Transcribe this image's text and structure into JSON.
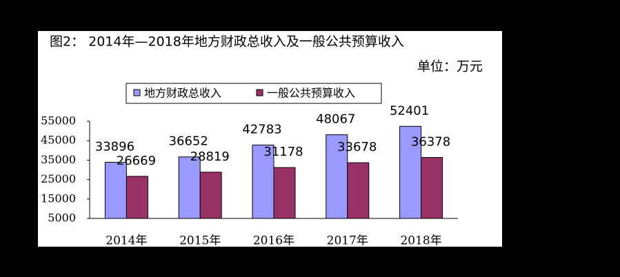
{
  "chart_data": {
    "type": "bar",
    "title": "图2： 2014年—2018年地方财政总收入及一般公共预算收入",
    "subtitle": "单位：万元",
    "categories": [
      "2014年",
      "2015年",
      "2016年",
      "2017年",
      "2018年"
    ],
    "series": [
      {
        "name": "地方财政总收入",
        "color": "#9999ff",
        "values": [
          33896,
          36652,
          42783,
          48067,
          52401
        ]
      },
      {
        "name": "一般公共预算收入",
        "color": "#993366",
        "values": [
          26669,
          28819,
          31178,
          33678,
          36378
        ]
      }
    ],
    "ylim": [
      5000,
      55000
    ],
    "yticks": [
      5000,
      15000,
      25000,
      35000,
      45000,
      55000
    ],
    "grid": false
  }
}
